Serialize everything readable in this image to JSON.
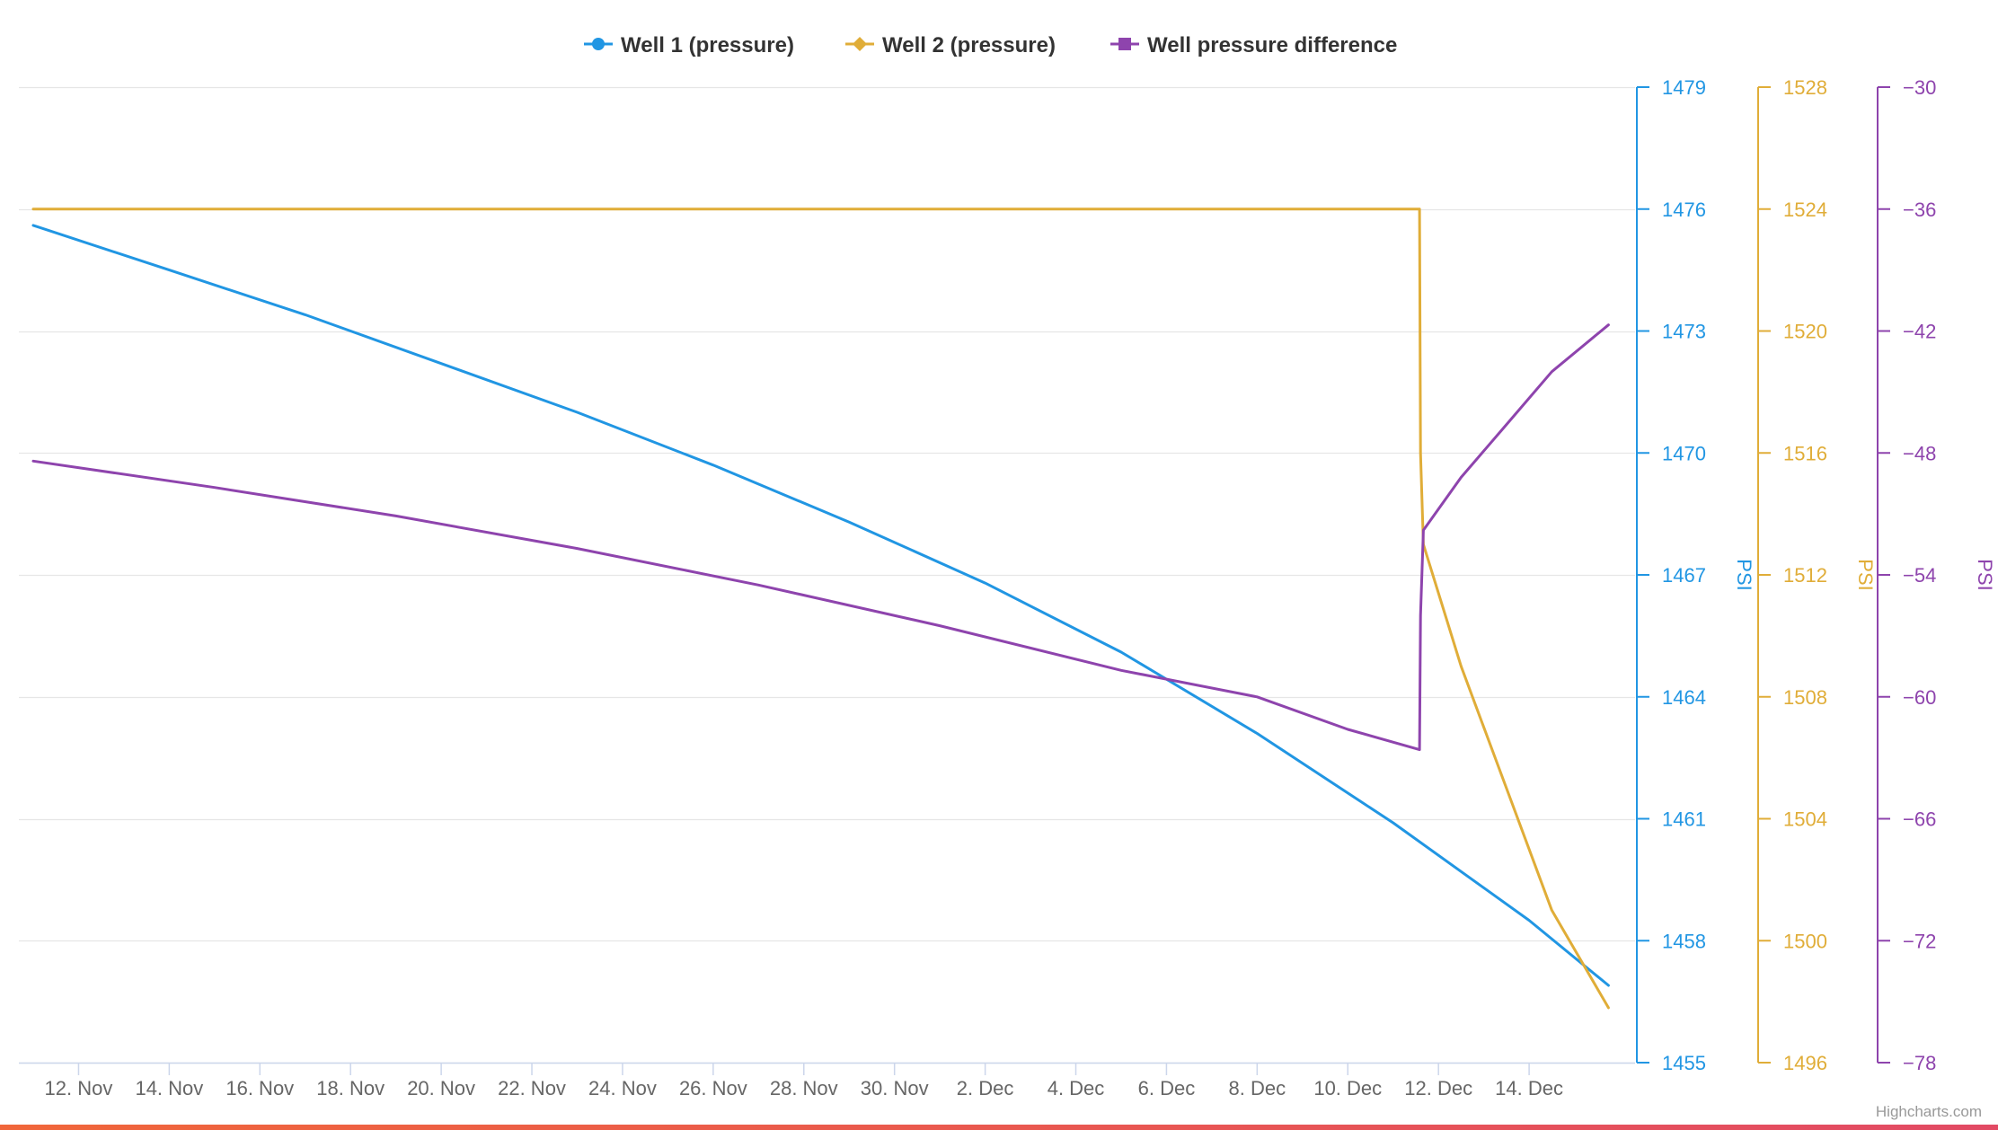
{
  "credits": "Highcharts.com",
  "legend": [
    {
      "name": "Well 1 (pressure)",
      "color": "#2196e3",
      "symbol": "circle"
    },
    {
      "name": "Well 2 (pressure)",
      "color": "#e0ad38",
      "symbol": "diamond"
    },
    {
      "name": "Well pressure difference",
      "color": "#8e44ad",
      "symbol": "square"
    }
  ],
  "chart_data": {
    "type": "line",
    "title": "",
    "grid": true,
    "legend_position": "top-center",
    "x_axis": {
      "type": "datetime",
      "min": "2023-11-11",
      "max": "2023-12-16",
      "ticks": [
        "12. Nov",
        "14. Nov",
        "16. Nov",
        "18. Nov",
        "20. Nov",
        "22. Nov",
        "24. Nov",
        "26. Nov",
        "28. Nov",
        "30. Nov",
        "2. Dec",
        "4. Dec",
        "6. Dec",
        "8. Dec",
        "10. Dec",
        "12. Dec",
        "14. Dec"
      ],
      "tick_dates": [
        "2023-11-12",
        "2023-11-14",
        "2023-11-16",
        "2023-11-18",
        "2023-11-20",
        "2023-11-22",
        "2023-11-24",
        "2023-11-26",
        "2023-11-28",
        "2023-11-30",
        "2023-12-02",
        "2023-12-04",
        "2023-12-06",
        "2023-12-08",
        "2023-12-10",
        "2023-12-12",
        "2023-12-14"
      ]
    },
    "y_axes": [
      {
        "title": "PSI",
        "color": "#2196e3",
        "min": 1455,
        "max": 1479,
        "ticks": [
          1455,
          1458,
          1461,
          1464,
          1467,
          1470,
          1473,
          1476,
          1479
        ]
      },
      {
        "title": "PSI",
        "color": "#e0ad38",
        "min": 1496,
        "max": 1528,
        "ticks": [
          1496,
          1500,
          1504,
          1508,
          1512,
          1516,
          1520,
          1524,
          1528
        ]
      },
      {
        "title": "PSI",
        "color": "#8e44ad",
        "min": -78,
        "max": -30,
        "ticks": [
          -78,
          -72,
          -66,
          -60,
          -54,
          -48,
          -42,
          -36,
          -30
        ]
      }
    ],
    "series": [
      {
        "name": "Well 1 (pressure)",
        "axis": 0,
        "color": "#2196e3",
        "points": [
          [
            "2023-11-11",
            1475.6
          ],
          [
            "2023-11-14",
            1474.5
          ],
          [
            "2023-11-17",
            1473.4
          ],
          [
            "2023-11-20",
            1472.2
          ],
          [
            "2023-11-23",
            1471.0
          ],
          [
            "2023-11-26",
            1469.7
          ],
          [
            "2023-11-29",
            1468.3
          ],
          [
            "2023-12-02",
            1466.8
          ],
          [
            "2023-12-05",
            1465.1
          ],
          [
            "2023-12-08",
            1463.1
          ],
          [
            "2023-12-11",
            1460.9
          ],
          [
            "2023-12-14",
            1458.5
          ],
          [
            "2023-12-15T18:00",
            1456.9
          ]
        ]
      },
      {
        "name": "Well 2 (pressure)",
        "axis": 1,
        "color": "#e0ad38",
        "points": [
          [
            "2023-11-11",
            1524
          ],
          [
            "2023-12-11T14:00",
            1524
          ],
          [
            "2023-12-11T14:30",
            1516
          ],
          [
            "2023-12-11T16:00",
            1513
          ],
          [
            "2023-12-12T12:00",
            1509
          ],
          [
            "2023-12-13T12:00",
            1505
          ],
          [
            "2023-12-14T12:00",
            1501
          ],
          [
            "2023-12-15T18:00",
            1497.8
          ]
        ]
      },
      {
        "name": "Well pressure difference",
        "axis": 2,
        "color": "#8e44ad",
        "points": [
          [
            "2023-11-11",
            -48.4
          ],
          [
            "2023-11-15",
            -49.7
          ],
          [
            "2023-11-19",
            -51.1
          ],
          [
            "2023-11-23",
            -52.7
          ],
          [
            "2023-11-27",
            -54.5
          ],
          [
            "2023-12-01",
            -56.5
          ],
          [
            "2023-12-05",
            -58.7
          ],
          [
            "2023-12-08",
            -60.0
          ],
          [
            "2023-12-10",
            -61.6
          ],
          [
            "2023-12-11T14:00",
            -62.6
          ],
          [
            "2023-12-11T14:30",
            -56.0
          ],
          [
            "2023-12-11T16:00",
            -51.8
          ],
          [
            "2023-12-12T12:00",
            -49.2
          ],
          [
            "2023-12-13T12:00",
            -46.6
          ],
          [
            "2023-12-14T12:00",
            -44.0
          ],
          [
            "2023-12-15T18:00",
            -41.7
          ]
        ]
      }
    ]
  }
}
